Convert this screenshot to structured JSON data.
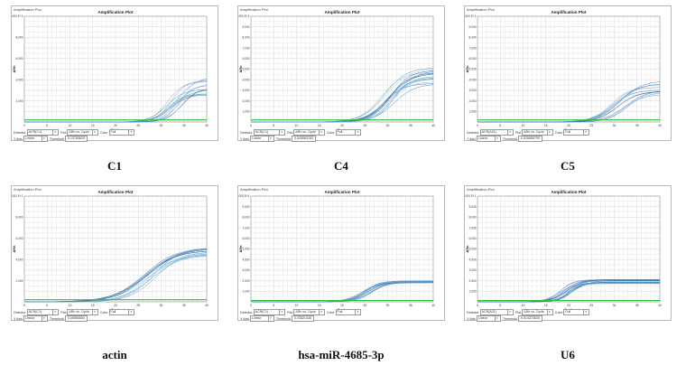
{
  "window_title": "Amplification Plot",
  "controls": {
    "detector_label": "Detector",
    "plot_label": "Plot",
    "plot_value": "ΔRn vs. Cycle",
    "color_label": "Color",
    "color_value": "Full",
    "yaxis_label": "Y Axis",
    "yaxis_value": "Linear",
    "threshold_label": "Threshold"
  },
  "colors": {
    "curve_blue": "#2a6fb8",
    "curve_light": "#7fb6e0",
    "curve_dark": "#1d3f7a",
    "threshold": "#2dbd3a",
    "grid": "#d3d3d3"
  },
  "chart_data": [
    {
      "type": "line",
      "title": "Amplification Plot",
      "caption": "C1",
      "xlabel": "Cycle",
      "ylabel": "ΔRn",
      "detector": "ACR(C1)",
      "threshold": "0.13765829",
      "xlim": [
        0,
        40
      ],
      "ylim": [
        0,
        10000
      ],
      "xticks": [
        "0",
        "5",
        "10",
        "15",
        "20",
        "25",
        "30",
        "35",
        "40"
      ],
      "yticks": [
        "2,000",
        "4,000",
        "6,000",
        "8,000",
        "1.000 E+1"
      ],
      "curve_model": {
        "count": 14,
        "ct_min": 29,
        "ct_max": 33,
        "plateau_min": 2500,
        "plateau_max": 4300,
        "slope": 0.55
      },
      "threshold_level": 200
    },
    {
      "type": "line",
      "title": "Amplification Plot",
      "caption": "C4",
      "xlabel": "Cycle",
      "ylabel": "ΔRn",
      "detector": "ACR(C1)",
      "threshold": "0.045083763",
      "xlim": [
        0,
        40
      ],
      "ylim": [
        0,
        10000
      ],
      "xticks": [
        "0",
        "5",
        "10",
        "15",
        "20",
        "25",
        "30",
        "35",
        "40"
      ],
      "yticks": [
        "1,000",
        "2,000",
        "3,000",
        "4,000",
        "5,000",
        "6,000",
        "7,000",
        "8,000",
        "9,000",
        "1.000 E+1"
      ],
      "curve_model": {
        "count": 16,
        "ct_min": 26,
        "ct_max": 30,
        "plateau_min": 3600,
        "plateau_max": 5200,
        "slope": 0.45
      },
      "threshold_level": 200
    },
    {
      "type": "line",
      "title": "Amplification Plot",
      "caption": "C5",
      "xlabel": "Cycle",
      "ylabel": "ΔRn",
      "detector": "ACR(A21)",
      "threshold": "0.028656799",
      "xlim": [
        0,
        40
      ],
      "ylim": [
        0,
        10000
      ],
      "xticks": [
        "0",
        "5",
        "10",
        "15",
        "20",
        "25",
        "30",
        "35",
        "40"
      ],
      "yticks": [
        "1,000",
        "2,000",
        "3,000",
        "4,000",
        "5,000",
        "6,000",
        "7,000",
        "8,000",
        "9,000",
        "1.000 E+1"
      ],
      "curve_model": {
        "count": 12,
        "ct_min": 27,
        "ct_max": 31,
        "plateau_min": 2600,
        "plateau_max": 4000,
        "slope": 0.45
      },
      "threshold_level": 200
    },
    {
      "type": "line",
      "title": "Amplification Plot",
      "caption": "actin",
      "xlabel": "Cycle",
      "ylabel": "ΔRn",
      "detector": "ACR(C1)",
      "threshold": "0.09856554",
      "xlim": [
        0,
        40
      ],
      "ylim": [
        0,
        10000
      ],
      "xticks": [
        "0",
        "5",
        "10",
        "15",
        "20",
        "25",
        "30",
        "35",
        "40"
      ],
      "yticks": [
        "2,000",
        "4,000",
        "6,000",
        "8,000",
        "1.000 E+1"
      ],
      "curve_model": {
        "count": 14,
        "ct_min": 24,
        "ct_max": 27,
        "plateau_min": 4300,
        "plateau_max": 5200,
        "slope": 0.3
      },
      "threshold_level": 200
    },
    {
      "type": "line",
      "title": "Amplification Plot",
      "caption": "hsa-miR-4685-3p",
      "xlabel": "Cycle",
      "ylabel": "ΔRn",
      "detector": "ACR(C1)",
      "threshold": "0.03621448",
      "xlim": [
        0,
        40
      ],
      "ylim": [
        0,
        10000
      ],
      "xticks": [
        "0",
        "5",
        "10",
        "15",
        "20",
        "25",
        "30",
        "35",
        "40"
      ],
      "yticks": [
        "1,000",
        "2,000",
        "3,000",
        "4,000",
        "5,000",
        "6,000",
        "7,000",
        "8,000",
        "9,000",
        "1.000 E+1"
      ],
      "curve_model": {
        "count": 14,
        "ct_min": 22.5,
        "ct_max": 24.5,
        "plateau_min": 1800,
        "plateau_max": 2000,
        "slope": 0.6
      },
      "threshold_level": 120
    },
    {
      "type": "line",
      "title": "Amplification Plot",
      "caption": "U6",
      "xlabel": "Cycle",
      "ylabel": "ΔRn",
      "detector": "ACR(A21)",
      "threshold": "0.014373635",
      "xlim": [
        0,
        40
      ],
      "ylim": [
        0,
        10000
      ],
      "xticks": [
        "0",
        "5",
        "10",
        "15",
        "20",
        "25",
        "30",
        "35",
        "40"
      ],
      "yticks": [
        "1,000",
        "2,000",
        "3,000",
        "4,000",
        "5,000",
        "6,000",
        "7,000",
        "8,000",
        "9,000",
        "1.000 E+1"
      ],
      "curve_model": {
        "count": 18,
        "ct_min": 16,
        "ct_max": 19,
        "plateau_min": 1700,
        "plateau_max": 2100,
        "slope": 0.65
      },
      "threshold_level": 120
    }
  ]
}
